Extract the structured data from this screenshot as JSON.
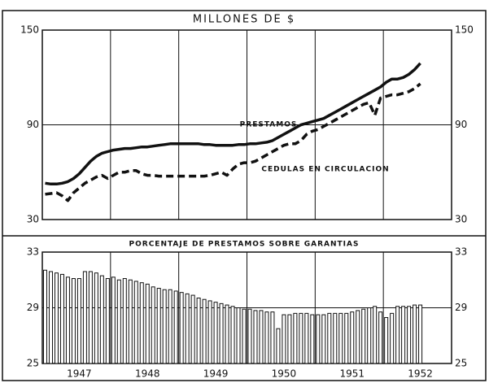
{
  "chart_data": [
    {
      "type": "line",
      "title": "MILLONES DE $",
      "ylim": [
        30,
        150
      ],
      "yticks": [
        30,
        90,
        150
      ],
      "grid": true,
      "series": [
        {
          "name": "PRESTAMOS",
          "color": "#111",
          "dash": false,
          "values": [
            53,
            52.5,
            52.5,
            53,
            54,
            56,
            59,
            63,
            67,
            70,
            72,
            73,
            74,
            74.5,
            75,
            75,
            75.5,
            76,
            76,
            76.5,
            77,
            77.5,
            78,
            78,
            78,
            78,
            78,
            78,
            77.5,
            77.5,
            77,
            77,
            77,
            77,
            77.5,
            77.5,
            78,
            78,
            78.5,
            79,
            80,
            82,
            84,
            86,
            88,
            90,
            91,
            92,
            93,
            94,
            96,
            98,
            100,
            102,
            104,
            106,
            108,
            110,
            112,
            114,
            117,
            119,
            119,
            120,
            122,
            125,
            129,
            null,
            null,
            null,
            null,
            null
          ]
        },
        {
          "name": "CEDULAS EN CIRCULACION",
          "color": "#111",
          "dash": true,
          "values": [
            46,
            46.5,
            47,
            45,
            42,
            47,
            50,
            53,
            55,
            57,
            58,
            56,
            58,
            60,
            60,
            61,
            61,
            59,
            58,
            58,
            57.5,
            57.5,
            57.5,
            57.5,
            57.5,
            57.5,
            57.5,
            57.5,
            57.5,
            58,
            59,
            60,
            58,
            62,
            65,
            66,
            66,
            67,
            69,
            71,
            73,
            75,
            77,
            78,
            78,
            80,
            84,
            86,
            87,
            89,
            91,
            93,
            95,
            97,
            99,
            101,
            103,
            104,
            96,
            107,
            108,
            109,
            109,
            110,
            111,
            113,
            116,
            null,
            null,
            null,
            null,
            null
          ]
        }
      ]
    },
    {
      "type": "bar",
      "title": "PORCENTAJE DE PRESTAMOS SOBRE GARANTIAS",
      "categories": [
        null,
        null,
        null,
        null,
        null,
        null,
        "1947",
        null,
        null,
        null,
        null,
        null,
        null,
        null,
        null,
        null,
        null,
        null,
        "1948",
        null,
        null,
        null,
        null,
        null,
        null,
        null,
        null,
        null,
        null,
        null,
        "1949",
        null,
        null,
        null,
        null,
        null,
        null,
        null,
        null,
        null,
        null,
        null,
        "1950",
        null,
        null,
        null,
        null,
        null,
        null,
        null,
        null,
        null,
        null,
        null,
        "1951",
        null,
        null,
        null,
        null,
        null,
        null,
        null,
        null,
        null,
        null,
        null,
        "1952",
        null,
        null,
        null,
        null,
        null
      ],
      "ylim": [
        25,
        33
      ],
      "yticks": [
        25,
        29,
        33
      ],
      "grid": true,
      "color": "#fff",
      "values": [
        31.7,
        31.6,
        31.5,
        31.4,
        31.2,
        31.1,
        31.1,
        31.6,
        31.6,
        31.5,
        31.3,
        31.1,
        31.2,
        31.0,
        31.1,
        31.0,
        30.9,
        30.8,
        30.7,
        30.5,
        30.4,
        30.3,
        30.3,
        30.2,
        30.1,
        30.0,
        29.9,
        29.7,
        29.6,
        29.5,
        29.4,
        29.3,
        29.2,
        29.1,
        29.0,
        28.9,
        28.9,
        28.8,
        28.8,
        28.7,
        28.7,
        27.5,
        28.5,
        28.5,
        28.6,
        28.6,
        28.6,
        28.5,
        28.5,
        28.5,
        28.6,
        28.6,
        28.6,
        28.6,
        28.7,
        28.8,
        28.9,
        29.0,
        29.1,
        28.7,
        28.3,
        28.6,
        29.1,
        29.1,
        29.1,
        29.2,
        29.2,
        null,
        null,
        null,
        null,
        null
      ]
    }
  ]
}
